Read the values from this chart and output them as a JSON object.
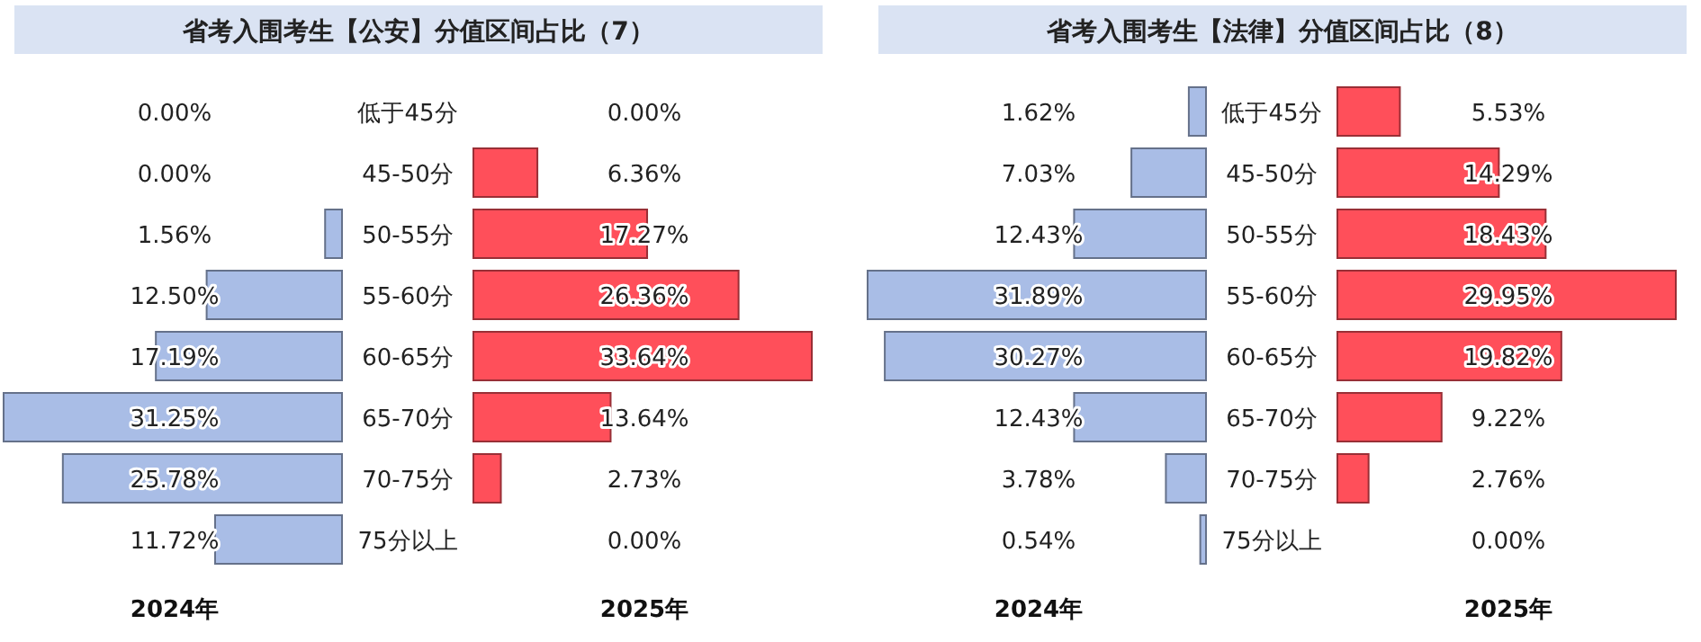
{
  "chart_data": [
    {
      "type": "bar",
      "orientation": "horizontal",
      "title": "省考入围考生【公安】分值区间占比（7）",
      "categories": [
        "低于45分",
        "45-50分",
        "50-55分",
        "55-60分",
        "60-65分",
        "65-70分",
        "70-75分",
        "75分以上"
      ],
      "series": [
        {
          "name": "2024年",
          "color": "#a9bde6",
          "values": [
            0,
            0,
            1.56,
            12.5,
            17.19,
            31.25,
            25.78,
            11.72
          ],
          "value_labels": [
            "0.00%",
            "0.00%",
            "1.56%",
            "12.50%",
            "17.19%",
            "31.25%",
            "25.78%",
            "11.72%"
          ]
        }
      ]
    },
    {
      "type": "bar",
      "orientation": "horizontal",
      "categories": [
        null,
        null,
        null,
        null,
        null,
        null,
        null,
        null
      ],
      "series": [
        {
          "name": "2025年",
          "color": "#ff4f5a",
          "values": [
            0,
            6.36,
            17.27,
            26.36,
            33.64,
            13.64,
            2.73,
            0
          ],
          "value_labels": [
            "0.00%",
            "6.36%",
            "17.27%",
            "26.36%",
            "33.64%",
            "13.64%",
            "2.73%",
            "0.00%"
          ]
        }
      ]
    },
    {
      "type": "bar",
      "orientation": "horizontal",
      "title": "省考入围考生【法律】分值区间占比（8）",
      "categories": [
        "低于45分",
        "45-50分",
        "50-55分",
        "55-60分",
        "60-65分",
        "65-70分",
        "70-75分",
        "75分以上"
      ],
      "series": [
        {
          "name": "2024年",
          "color": "#a9bde6",
          "values": [
            1.62,
            7.03,
            12.43,
            31.89,
            30.27,
            12.43,
            3.78,
            0.54
          ],
          "value_labels": [
            "1.62%",
            "7.03%",
            "12.43%",
            "31.89%",
            "30.27%",
            "12.43%",
            "3.78%",
            "0.54%"
          ]
        }
      ]
    },
    {
      "type": "bar",
      "orientation": "horizontal",
      "categories": [
        null,
        null,
        null,
        null,
        null,
        null,
        null,
        null
      ],
      "series": [
        {
          "name": "2025年",
          "color": "#ff4f5a",
          "values": [
            5.53,
            14.29,
            18.43,
            29.95,
            19.82,
            9.22,
            2.76,
            0
          ],
          "value_labels": [
            "5.53%",
            "14.29%",
            "18.43%",
            "29.95%",
            "19.82%",
            "9.22%",
            "2.76%",
            "0.00%"
          ]
        }
      ]
    }
  ]
}
